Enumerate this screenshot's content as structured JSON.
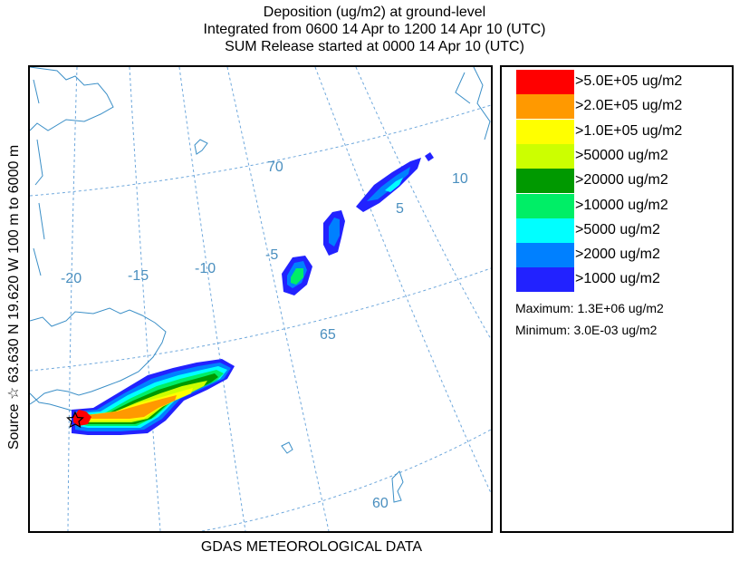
{
  "header": {
    "line1": "Deposition  (ug/m2) at ground-level",
    "line2": "Integrated from 0600 14 Apr to 1200 14 Apr 10 (UTC)",
    "line3": "SUM  Release started at 0000 14 Apr 10 (UTC)"
  },
  "side_label": "Source ☆  63.630  N  19.620  W   100 m to 6000 m",
  "footer": "GDAS METEOROLOGICAL DATA",
  "map": {
    "graticule_labels": {
      "lat_70": "70",
      "lat_65": "65",
      "lat_60": "60",
      "lon_m20": "-20",
      "lon_m15": "-15",
      "lon_m10": "-10",
      "lon_m5": "-5",
      "lon_5": "5",
      "lon_10": "10"
    },
    "colors": {
      "graticule": "#6fa8dc",
      "coastline": "#3b8fc7",
      "source_marker": "#000000"
    }
  },
  "legend": {
    "items": [
      {
        "label": ">5.0E+05 ug/m2",
        "color": "#ff0000"
      },
      {
        "label": ">2.0E+05 ug/m2",
        "color": "#ff9900"
      },
      {
        "label": ">1.0E+05 ug/m2",
        "color": "#ffff00"
      },
      {
        "label": ">50000 ug/m2",
        "color": "#ccff00"
      },
      {
        "label": ">20000 ug/m2",
        "color": "#009900"
      },
      {
        "label": ">10000 ug/m2",
        "color": "#00ee66"
      },
      {
        "label": ">5000 ug/m2",
        "color": "#00ffff"
      },
      {
        "label": ">2000 ug/m2",
        "color": "#0080ff"
      },
      {
        "label": ">1000 ug/m2",
        "color": "#2222ff"
      }
    ],
    "maximum": "Maximum: 1.3E+06 ug/m2",
    "minimum": "Minimum: 3.0E-03 ug/m2"
  }
}
